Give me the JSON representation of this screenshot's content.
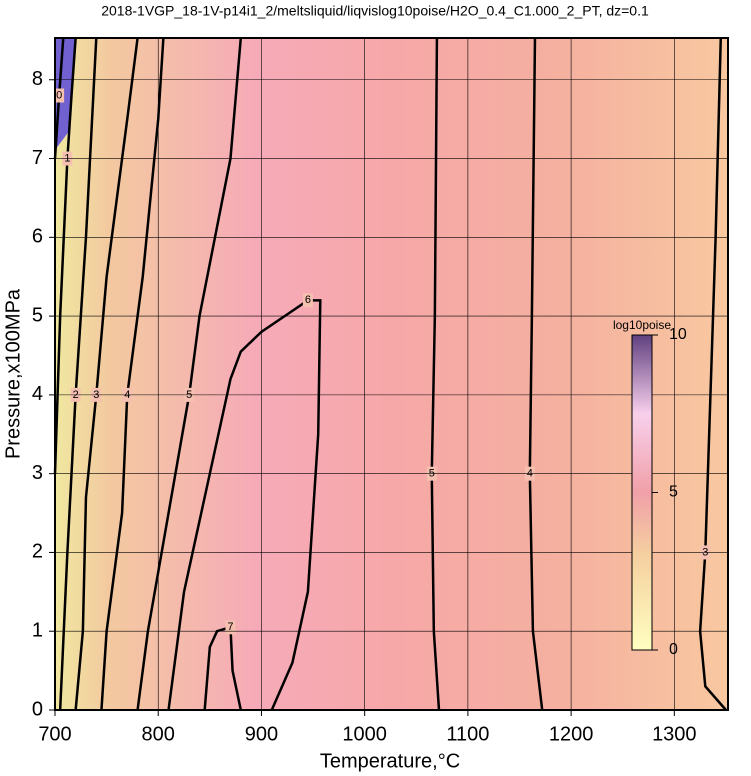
{
  "chart_data": {
    "type": "contour",
    "title": "2018-1VGP_18-1V-p14i1_2/meltsliquid/liqvislog10poise/H2O_0.4_C1.000_2_PT, dz=0.1",
    "x_label": "Temperature,°C",
    "y_label": "Pressure,x100MPa",
    "xlim": [
      700,
      1352
    ],
    "ylim": [
      0,
      8.53
    ],
    "xticks": [
      700,
      800,
      900,
      1000,
      1100,
      1200,
      1300
    ],
    "yticks": [
      0,
      1,
      2,
      3,
      4,
      5,
      6,
      7,
      8
    ],
    "grid": true,
    "contours": [
      {
        "level": 0,
        "x": [
          700,
          704,
          708
        ],
        "y": [
          7.0,
          7.8,
          8.53
        ]
      },
      {
        "level": 1,
        "x": [
          700,
          705,
          712,
          716,
          720
        ],
        "y": [
          3.0,
          5.0,
          7.0,
          7.8,
          8.53
        ]
      },
      {
        "level": 2,
        "x": [
          705,
          712,
          720,
          730,
          740
        ],
        "y": [
          0,
          2.0,
          4.0,
          6.0,
          8.53
        ]
      },
      {
        "level": 3,
        "x": [
          720,
          727,
          730,
          740,
          750,
          770,
          780
        ],
        "y": [
          0,
          1.0,
          2.7,
          4.0,
          5.5,
          7.5,
          8.53
        ]
      },
      {
        "level": 4,
        "x": [
          745,
          750,
          765,
          770,
          785,
          800,
          805
        ],
        "y": [
          0,
          1.0,
          2.5,
          4.0,
          5.5,
          7.5,
          8.53
        ]
      },
      {
        "level": 5,
        "x": [
          780,
          790,
          810,
          830,
          840,
          870,
          880
        ],
        "y": [
          0,
          1.0,
          2.5,
          4.0,
          5.0,
          7.0,
          8.53
        ]
      },
      {
        "level": 6,
        "x": [
          810,
          825,
          850,
          870,
          880,
          900,
          945,
          957,
          955,
          945,
          930,
          920,
          910
        ],
        "y": [
          0,
          1.5,
          3.0,
          4.2,
          4.55,
          4.8,
          5.2,
          5.2,
          3.5,
          1.5,
          0.6,
          0.3,
          0
        ]
      },
      {
        "level": 7,
        "x": [
          845,
          850,
          857,
          870,
          872,
          880
        ],
        "y": [
          0,
          0.8,
          1.0,
          1.05,
          0.5,
          0
        ]
      },
      {
        "level": 5,
        "x": [
          1070,
          1068,
          1065,
          1067,
          1072
        ],
        "y": [
          8.53,
          5.0,
          3.0,
          1.0,
          0
        ]
      },
      {
        "level": 4,
        "x": [
          1165,
          1162,
          1160,
          1163,
          1172
        ],
        "y": [
          8.53,
          5.0,
          3.0,
          1.0,
          0
        ]
      },
      {
        "level": 3,
        "x": [
          1345,
          1340,
          1335,
          1330,
          1325,
          1330,
          1350
        ],
        "y": [
          8.53,
          6.0,
          4.0,
          2.0,
          1.0,
          0.3,
          0
        ]
      }
    ],
    "colorbar": {
      "label": "log10poise",
      "lim": [
        0,
        10
      ],
      "ticks": [
        0,
        5,
        10
      ]
    }
  }
}
